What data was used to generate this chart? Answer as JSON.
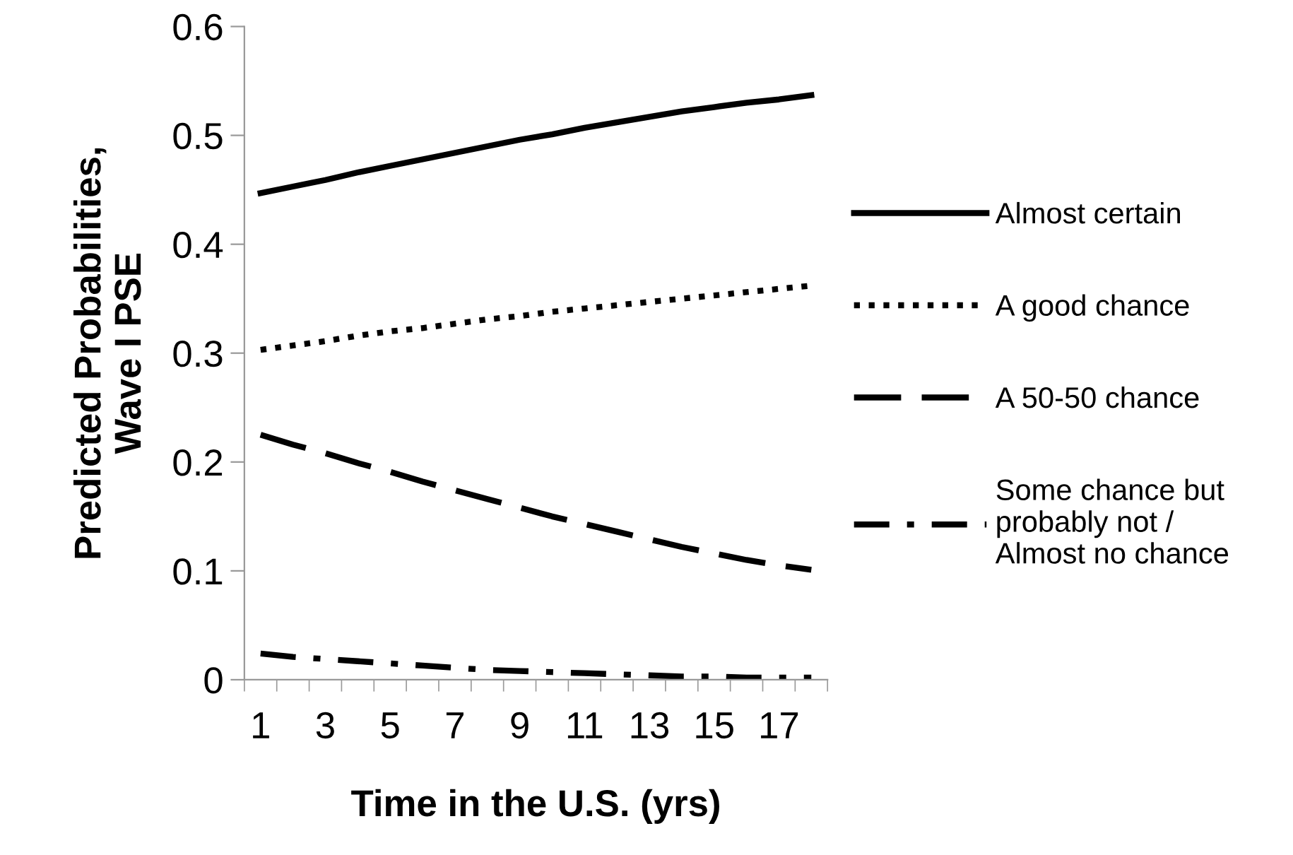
{
  "chart_data": {
    "type": "line",
    "xlabel": "Time in the U.S. (yrs)",
    "ylabel": "Predicted Probabilities,\nWave I PSE",
    "categories": [
      "1",
      null,
      "3",
      null,
      "5",
      null,
      "7",
      null,
      "9",
      null,
      "11",
      null,
      "13",
      null,
      "15",
      null,
      "17",
      null
    ],
    "ylim": [
      0,
      0.6
    ],
    "yticks": [
      {
        "value": 0,
        "label": "0"
      },
      0.1,
      0.2,
      0.3,
      0.4,
      0.5,
      0.6
    ],
    "legend": "right",
    "series": [
      {
        "name": "Almost certain",
        "color": "#000000",
        "line_style": "solid",
        "values": [
          0.447,
          0.453,
          0.459,
          0.466,
          0.472,
          0.478,
          0.484,
          0.49,
          0.496,
          0.501,
          0.507,
          0.512,
          0.517,
          0.522,
          0.526,
          0.53,
          0.533,
          0.537
        ]
      },
      {
        "name": "A good chance",
        "color": "#000000",
        "line_style": "dotted",
        "values": [
          0.303,
          0.307,
          0.311,
          0.316,
          0.32,
          0.323,
          0.327,
          0.331,
          0.334,
          0.338,
          0.341,
          0.344,
          0.347,
          0.35,
          0.353,
          0.356,
          0.359,
          0.362
        ]
      },
      {
        "name": "A 50-50 chance",
        "color": "#000000",
        "line_style": "dashed",
        "values": [
          0.225,
          0.216,
          0.208,
          0.199,
          0.191,
          0.182,
          0.174,
          0.166,
          0.158,
          0.15,
          0.143,
          0.136,
          0.129,
          0.122,
          0.116,
          0.11,
          0.105,
          0.101
        ]
      },
      {
        "name": "Some chance but\nprobably not /\nAlmost no chance",
        "color": "#000000",
        "line_style": "dashdot",
        "values": [
          0.024,
          0.021,
          0.019,
          0.017,
          0.015,
          0.013,
          0.011,
          0.009,
          0.008,
          0.007,
          0.006,
          0.005,
          0.004,
          0.003,
          0.003,
          0.002,
          0.002,
          0.002
        ]
      }
    ]
  }
}
